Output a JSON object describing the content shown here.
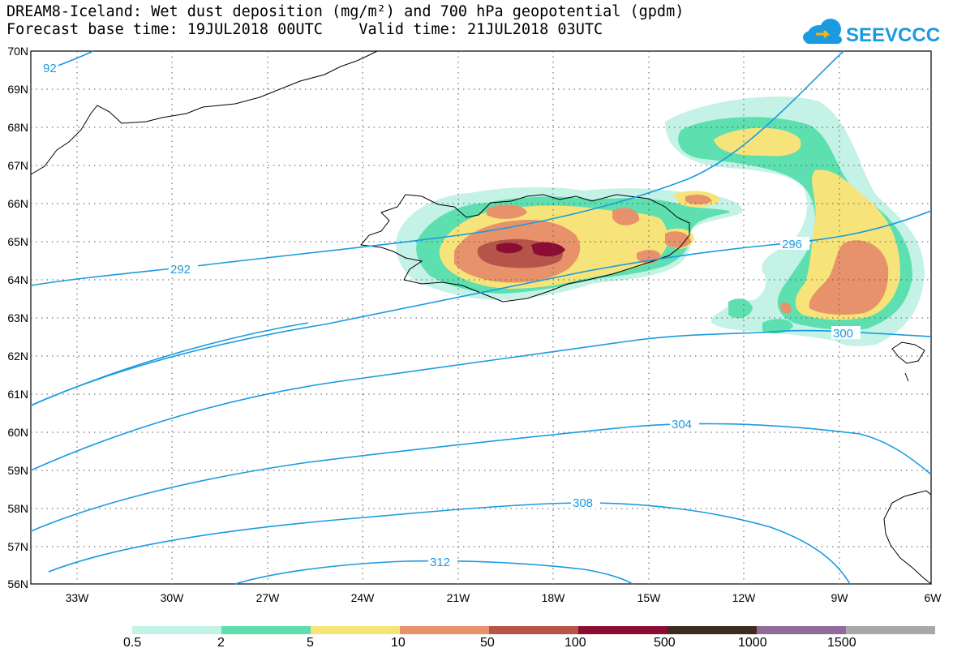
{
  "title": {
    "line1": "DREAM8-Iceland: Wet dust deposition (mg/m²) and 700 hPa geopotential (gpdm)",
    "line2": "Forecast base time: 19JUL2018 00UTC    Valid time: 21JUL2018 03UTC"
  },
  "logo": {
    "text": "SEEVCCC",
    "color": "#1a9be0"
  },
  "axes": {
    "lat_labels": [
      "70N",
      "69N",
      "68N",
      "67N",
      "66N",
      "65N",
      "64N",
      "63N",
      "62N",
      "61N",
      "60N",
      "59N",
      "58N",
      "57N",
      "56N"
    ],
    "lon_labels": [
      "33W",
      "30W",
      "27W",
      "24W",
      "21W",
      "18W",
      "15W",
      "12W",
      "9W",
      "6W"
    ]
  },
  "contours": {
    "color": "#1a9be0",
    "labels": [
      "92",
      "292",
      "296",
      "300",
      "304",
      "308",
      "312"
    ]
  },
  "legend": {
    "colors": [
      "#c4f2e6",
      "#5ddfb0",
      "#f6e47a",
      "#e7926b",
      "#b55448",
      "#8c0d33",
      "#3f2a1e",
      "#8f6a9a",
      "#a8a8a8"
    ],
    "labels": [
      "0.5",
      "2",
      "5",
      "10",
      "50",
      "100",
      "500",
      "1000",
      "1500"
    ]
  }
}
